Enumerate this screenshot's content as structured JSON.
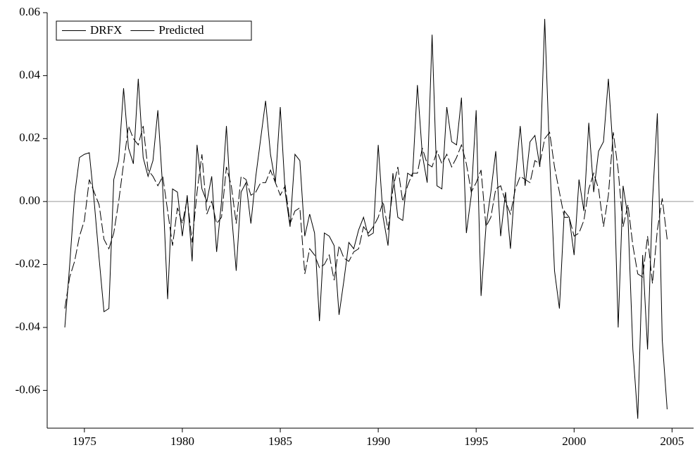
{
  "chart_data": {
    "type": "line",
    "x": [
      1974,
      1974.25,
      1974.5,
      1974.75,
      1975,
      1975.25,
      1975.5,
      1975.75,
      1976,
      1976.25,
      1976.5,
      1976.75,
      1977,
      1977.25,
      1977.5,
      1977.75,
      1978,
      1978.25,
      1978.5,
      1978.75,
      1979,
      1979.25,
      1979.5,
      1979.75,
      1980,
      1980.25,
      1980.5,
      1980.75,
      1981,
      1981.25,
      1981.5,
      1981.75,
      1982,
      1982.25,
      1982.5,
      1982.75,
      1983,
      1983.25,
      1983.5,
      1983.75,
      1984,
      1984.25,
      1984.5,
      1984.75,
      1985,
      1985.25,
      1985.5,
      1985.75,
      1986,
      1986.25,
      1986.5,
      1986.75,
      1987,
      1987.25,
      1987.5,
      1987.75,
      1988,
      1988.25,
      1988.5,
      1988.75,
      1989,
      1989.25,
      1989.5,
      1989.75,
      1990,
      1990.25,
      1990.5,
      1990.75,
      1991,
      1991.25,
      1991.5,
      1991.75,
      1992,
      1992.25,
      1992.5,
      1992.75,
      1993,
      1993.25,
      1993.5,
      1993.75,
      1994,
      1994.25,
      1994.5,
      1994.75,
      1995,
      1995.25,
      1995.5,
      1995.75,
      1996,
      1996.25,
      1996.5,
      1996.75,
      1997,
      1997.25,
      1997.5,
      1997.75,
      1998,
      1998.25,
      1998.5,
      1998.75,
      1999,
      1999.25,
      1999.5,
      1999.75,
      2000,
      2000.25,
      2000.5,
      2000.75,
      2001,
      2001.25,
      2001.5,
      2001.75,
      2002,
      2002.25,
      2002.5,
      2002.75,
      2003,
      2003.25,
      2003.5,
      2003.75,
      2004,
      2004.25,
      2004.5,
      2004.75
    ],
    "series": [
      {
        "name": "DRFX",
        "color": "#000000",
        "dash": false,
        "values": [
          -0.04,
          -0.02,
          0.002,
          0.014,
          0.015,
          0.0155,
          0.0,
          -0.018,
          -0.035,
          -0.034,
          0.007,
          0.013,
          0.036,
          0.017,
          0.012,
          0.039,
          0.014,
          0.008,
          0.013,
          0.029,
          0.004,
          -0.031,
          0.004,
          0.003,
          -0.011,
          0.002,
          -0.019,
          0.018,
          0.004,
          0.0,
          0.008,
          -0.016,
          0.0,
          0.024,
          -0.003,
          -0.022,
          0.003,
          0.006,
          -0.007,
          0.008,
          0.02,
          0.032,
          0.015,
          0.006,
          0.03,
          0.003,
          -0.008,
          0.015,
          0.013,
          -0.011,
          -0.004,
          -0.01,
          -0.038,
          -0.01,
          -0.011,
          -0.014,
          -0.036,
          -0.025,
          -0.013,
          -0.015,
          -0.009,
          -0.005,
          -0.011,
          -0.01,
          0.018,
          -0.005,
          -0.014,
          0.009,
          -0.005,
          -0.006,
          0.009,
          0.008,
          0.037,
          0.015,
          0.006,
          0.053,
          0.005,
          0.004,
          0.03,
          0.019,
          0.018,
          0.033,
          -0.01,
          0.002,
          0.029,
          -0.03,
          -0.008,
          0.003,
          0.016,
          -0.011,
          0.003,
          -0.015,
          0.007,
          0.024,
          0.005,
          0.019,
          0.021,
          0.011,
          0.058,
          0.014,
          -0.022,
          -0.034,
          -0.003,
          -0.005,
          -0.017,
          0.007,
          -0.003,
          0.025,
          0.003,
          0.016,
          0.019,
          0.039,
          0.015,
          -0.04,
          0.005,
          -0.005,
          -0.047,
          -0.069,
          -0.017,
          -0.047,
          0.0,
          0.028,
          -0.044,
          -0.066
        ]
      },
      {
        "name": "Predicted",
        "color": "#000000",
        "dash": true,
        "values": [
          -0.034,
          -0.024,
          -0.019,
          -0.011,
          -0.006,
          0.007,
          0.003,
          -0.001,
          -0.012,
          -0.015,
          -0.01,
          0.0,
          0.012,
          0.024,
          0.02,
          0.018,
          0.024,
          0.01,
          0.008,
          0.005,
          0.008,
          -0.003,
          -0.014,
          -0.002,
          -0.007,
          0.001,
          -0.013,
          0.003,
          0.015,
          -0.004,
          0.0,
          -0.007,
          -0.005,
          0.011,
          0.005,
          -0.007,
          0.008,
          0.007,
          0.002,
          0.003,
          0.006,
          0.006,
          0.01,
          0.006,
          0.002,
          0.005,
          -0.007,
          -0.003,
          -0.002,
          -0.023,
          -0.015,
          -0.017,
          -0.021,
          -0.02,
          -0.017,
          -0.025,
          -0.014,
          -0.018,
          -0.019,
          -0.016,
          -0.015,
          -0.008,
          -0.01,
          -0.008,
          -0.005,
          0.0,
          -0.009,
          0.004,
          0.011,
          0.0,
          0.005,
          0.009,
          0.009,
          0.017,
          0.012,
          0.011,
          0.016,
          0.012,
          0.015,
          0.011,
          0.014,
          0.018,
          0.012,
          0.003,
          0.006,
          0.01,
          -0.008,
          -0.005,
          0.004,
          0.005,
          0.0,
          -0.004,
          0.004,
          0.008,
          0.007,
          0.006,
          0.013,
          0.012,
          0.02,
          0.022,
          0.011,
          0.003,
          -0.005,
          -0.005,
          -0.011,
          -0.01,
          -0.006,
          0.004,
          0.009,
          0.004,
          -0.008,
          0.002,
          0.022,
          0.01,
          -0.008,
          -0.001,
          -0.014,
          -0.023,
          -0.024,
          -0.011,
          -0.026,
          -0.009,
          0.001,
          -0.012
        ]
      }
    ],
    "xlim": [
      1973.1,
      2006.1
    ],
    "xticks": [
      1975,
      1980,
      1985,
      1990,
      1995,
      2000,
      2005
    ],
    "ylim": [
      -0.072,
      0.06
    ],
    "yticks": [
      {
        "value": -0.06,
        "label": "-0.06"
      },
      {
        "value": -0.04,
        "label": "-0.04"
      },
      {
        "value": -0.02,
        "label": "-0.02"
      },
      {
        "value": 0,
        "label": "0.00"
      },
      {
        "value": 0.02,
        "label": "0.02"
      },
      {
        "value": 0.04,
        "label": "0.04"
      },
      {
        "value": 0.06,
        "label": "0.06"
      }
    ],
    "zero_line": true,
    "legend": "top-left"
  }
}
